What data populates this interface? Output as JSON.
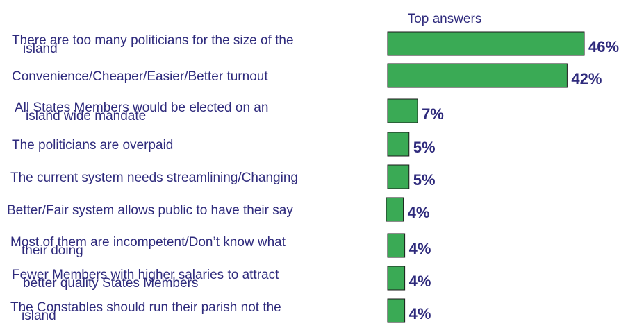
{
  "chart_data": {
    "type": "bar",
    "orientation": "horizontal",
    "title": "Top answers",
    "categories": [
      [
        "There are too many politicians for the size of the",
        "island"
      ],
      [
        "Convenience/Cheaper/Easier/Better turnout"
      ],
      [
        "All States Members would be elected on an",
        "island wide mandate"
      ],
      [
        "The politicians are overpaid"
      ],
      [
        "The current system needs streamlining/Changing"
      ],
      [
        "Better/Fair system allows public to have their say"
      ],
      [
        "Most of them are incompetent/Don’t know what",
        "their doing"
      ],
      [
        "Fewer Members with higher salaries to attract",
        "better quality States Members"
      ],
      [
        "The Constables should run their parish not the",
        "island"
      ]
    ],
    "values": [
      46,
      42,
      7,
      5,
      5,
      4,
      4,
      4,
      4
    ],
    "value_labels": [
      "46%",
      "42%",
      "7%",
      "5%",
      "5%",
      "4%",
      "4%",
      "4%",
      "4%"
    ],
    "unit": "%",
    "bar_color": "#3aaa55",
    "text_color": "#2e2a7c",
    "xlim": [
      0,
      46
    ],
    "grid": false,
    "legend": "none"
  }
}
